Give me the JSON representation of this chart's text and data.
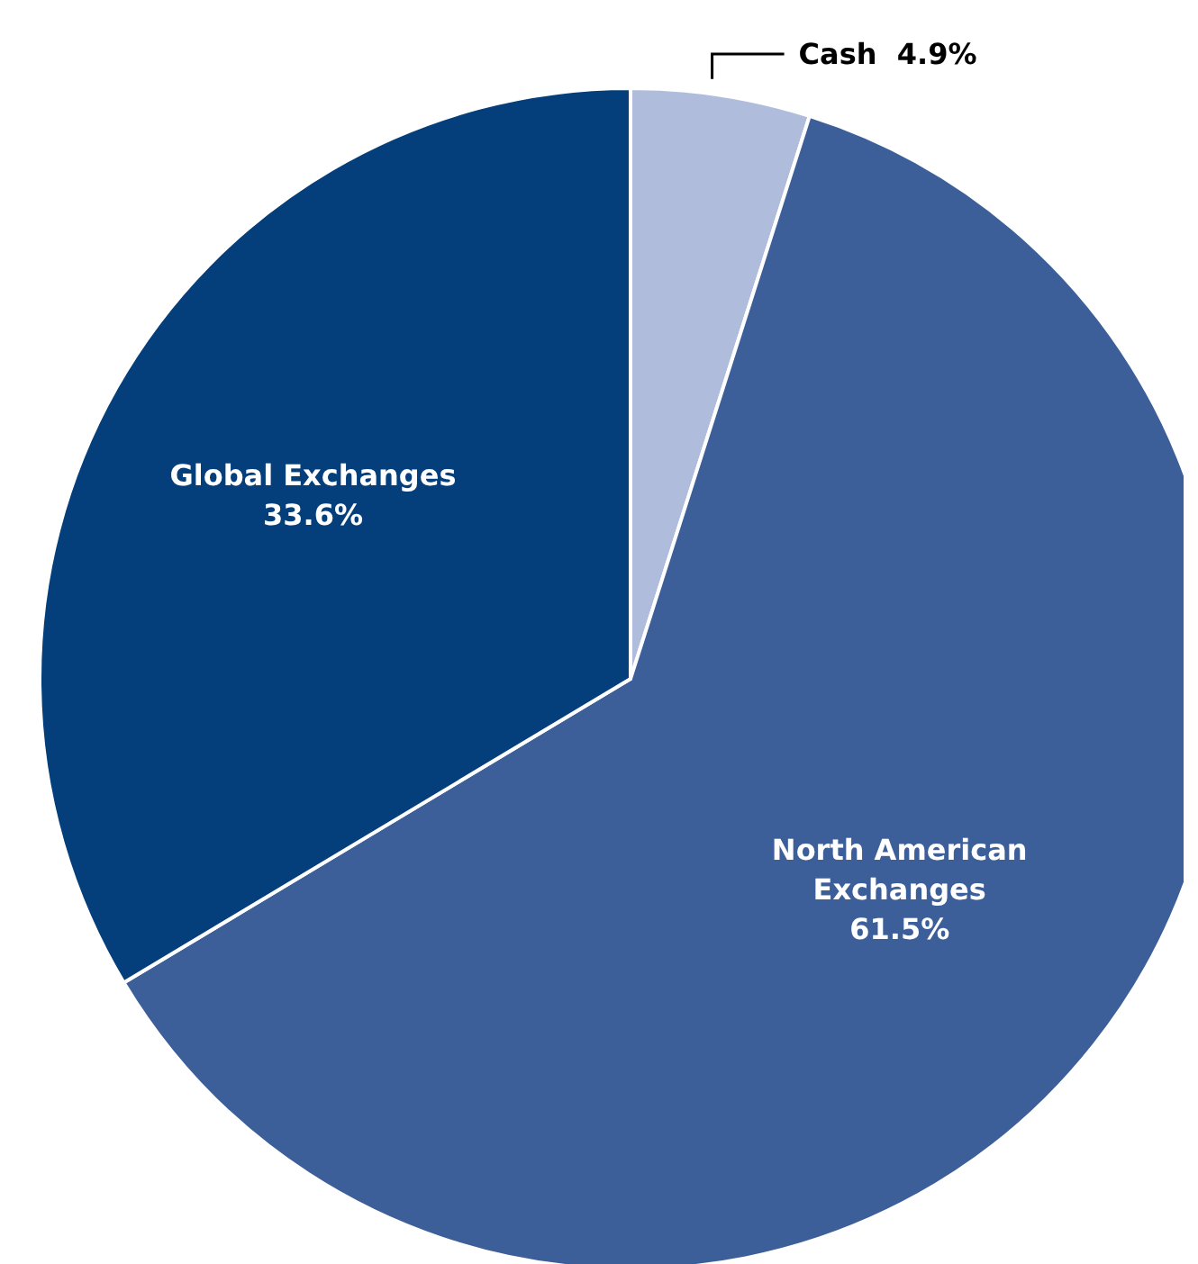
{
  "chart_data": {
    "type": "pie",
    "categories": [
      "Cash",
      "North American Exchanges",
      "Global Exchanges"
    ],
    "values": [
      4.9,
      61.5,
      33.6
    ],
    "colors": [
      "#afbcdb",
      "#3d5f99",
      "#053f7b"
    ],
    "value_labels": [
      "4.9%",
      "61.5%",
      "33.6%"
    ]
  }
}
